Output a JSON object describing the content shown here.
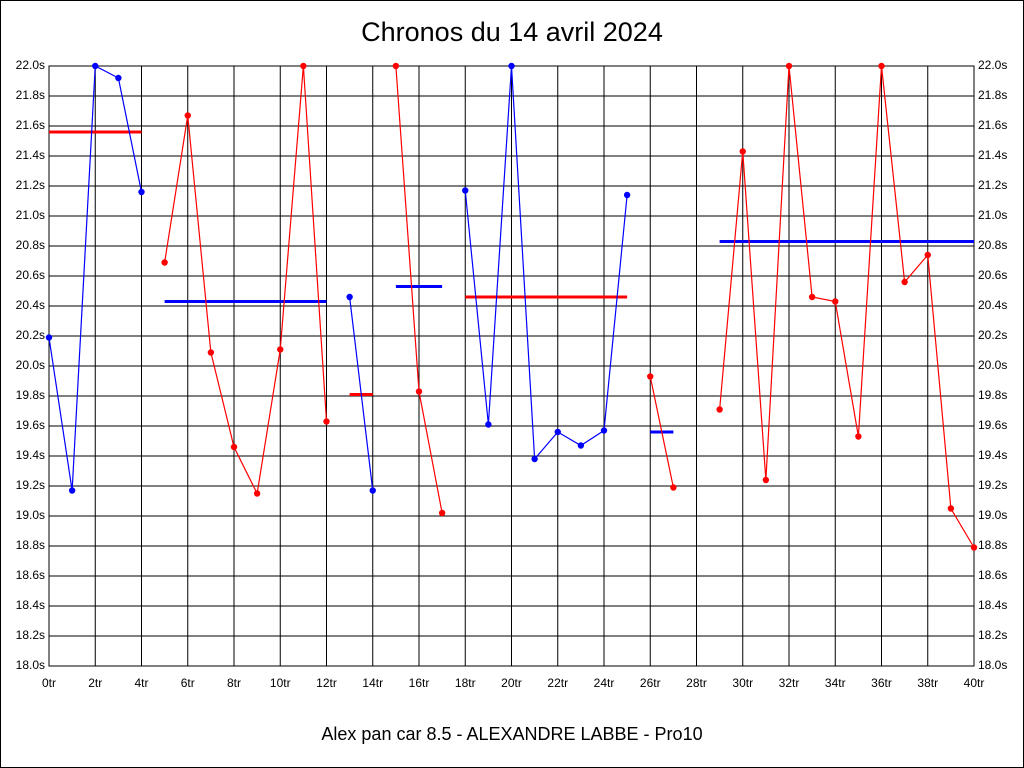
{
  "chart_data": {
    "type": "line",
    "title": "Chronos du 14 avril 2024",
    "xlabel": "Alex pan car 8.5 - ALEXANDRE LABBE - Pro10",
    "x": [
      0,
      1,
      2,
      3,
      4,
      5,
      6,
      7,
      8,
      9,
      10,
      11,
      12,
      13,
      14,
      15,
      16,
      17,
      18,
      19,
      20,
      21,
      22,
      23,
      24,
      25,
      26,
      27,
      28,
      29,
      30,
      31,
      32,
      33,
      34,
      35,
      36,
      37,
      38,
      39,
      40
    ],
    "series": [
      {
        "color": "#0000ff",
        "values": [
          20.19,
          19.17,
          22.0,
          21.92,
          21.16,
          null,
          null,
          null,
          null,
          null,
          null,
          null,
          null,
          20.46,
          19.17,
          null,
          null,
          null,
          21.17,
          19.61,
          22.0,
          19.38,
          19.56,
          19.47,
          19.57,
          21.14,
          null,
          null,
          null,
          null,
          null,
          null,
          null,
          null,
          null,
          null,
          null,
          null,
          null,
          null,
          null
        ]
      },
      {
        "color": "#ff0000",
        "values": [
          null,
          null,
          null,
          null,
          null,
          20.69,
          21.67,
          20.09,
          19.46,
          19.15,
          20.11,
          22.0,
          19.63,
          null,
          null,
          22.0,
          19.83,
          19.02,
          null,
          null,
          null,
          null,
          null,
          null,
          null,
          null,
          19.93,
          19.19,
          null,
          19.71,
          21.43,
          19.24,
          22.0,
          20.46,
          20.43,
          19.53,
          22.0,
          20.56,
          20.74,
          19.05,
          18.79
        ]
      }
    ],
    "averages": [
      {
        "color": "#ff0000",
        "from": 0,
        "to": 4,
        "value": 21.56
      },
      {
        "color": "#0000ff",
        "from": 5,
        "to": 12,
        "value": 20.43
      },
      {
        "color": "#ff0000",
        "from": 13,
        "to": 14,
        "value": 19.81
      },
      {
        "color": "#0000ff",
        "from": 15,
        "to": 17,
        "value": 20.53
      },
      {
        "color": "#ff0000",
        "from": 18,
        "to": 25,
        "value": 20.46
      },
      {
        "color": "#0000ff",
        "from": 26,
        "to": 27,
        "value": 19.56
      },
      {
        "color": "#0000ff",
        "from": 29,
        "to": 40,
        "value": 20.83
      }
    ],
    "xlim": [
      0,
      40
    ],
    "xticks": [
      {
        "value": 0,
        "label": "0tr"
      },
      {
        "value": 2,
        "label": "2tr"
      },
      {
        "value": 4,
        "label": "4tr"
      },
      {
        "value": 6,
        "label": "6tr"
      },
      {
        "value": 8,
        "label": "8tr"
      },
      {
        "value": 10,
        "label": "10tr"
      },
      {
        "value": 12,
        "label": "12tr"
      },
      {
        "value": 14,
        "label": "14tr"
      },
      {
        "value": 16,
        "label": "16tr"
      },
      {
        "value": 18,
        "label": "18tr"
      },
      {
        "value": 20,
        "label": "20tr"
      },
      {
        "value": 22,
        "label": "22tr"
      },
      {
        "value": 24,
        "label": "24tr"
      },
      {
        "value": 26,
        "label": "26tr"
      },
      {
        "value": 28,
        "label": "28tr"
      },
      {
        "value": 30,
        "label": "30tr"
      },
      {
        "value": 32,
        "label": "32tr"
      },
      {
        "value": 34,
        "label": "34tr"
      },
      {
        "value": 36,
        "label": "36tr"
      },
      {
        "value": 38,
        "label": "38tr"
      },
      {
        "value": 40,
        "label": "40tr"
      }
    ],
    "ylim": [
      18.0,
      22.0
    ],
    "yticks": [
      {
        "value": 18.0,
        "label": "18.0s"
      },
      {
        "value": 18.2,
        "label": "18.2s"
      },
      {
        "value": 18.4,
        "label": "18.4s"
      },
      {
        "value": 18.6,
        "label": "18.6s"
      },
      {
        "value": 18.8,
        "label": "18.8s"
      },
      {
        "value": 19.0,
        "label": "19.0s"
      },
      {
        "value": 19.2,
        "label": "19.2s"
      },
      {
        "value": 19.4,
        "label": "19.4s"
      },
      {
        "value": 19.6,
        "label": "19.6s"
      },
      {
        "value": 19.8,
        "label": "19.8s"
      },
      {
        "value": 20.0,
        "label": "20.0s"
      },
      {
        "value": 20.2,
        "label": "20.2s"
      },
      {
        "value": 20.4,
        "label": "20.4s"
      },
      {
        "value": 20.6,
        "label": "20.6s"
      },
      {
        "value": 20.8,
        "label": "20.8s"
      },
      {
        "value": 21.0,
        "label": "21.0s"
      },
      {
        "value": 21.2,
        "label": "21.2s"
      },
      {
        "value": 21.4,
        "label": "21.4s"
      },
      {
        "value": 21.6,
        "label": "21.6s"
      },
      {
        "value": 21.8,
        "label": "21.8s"
      },
      {
        "value": 22.0,
        "label": "22.0s"
      }
    ],
    "grid": true
  }
}
